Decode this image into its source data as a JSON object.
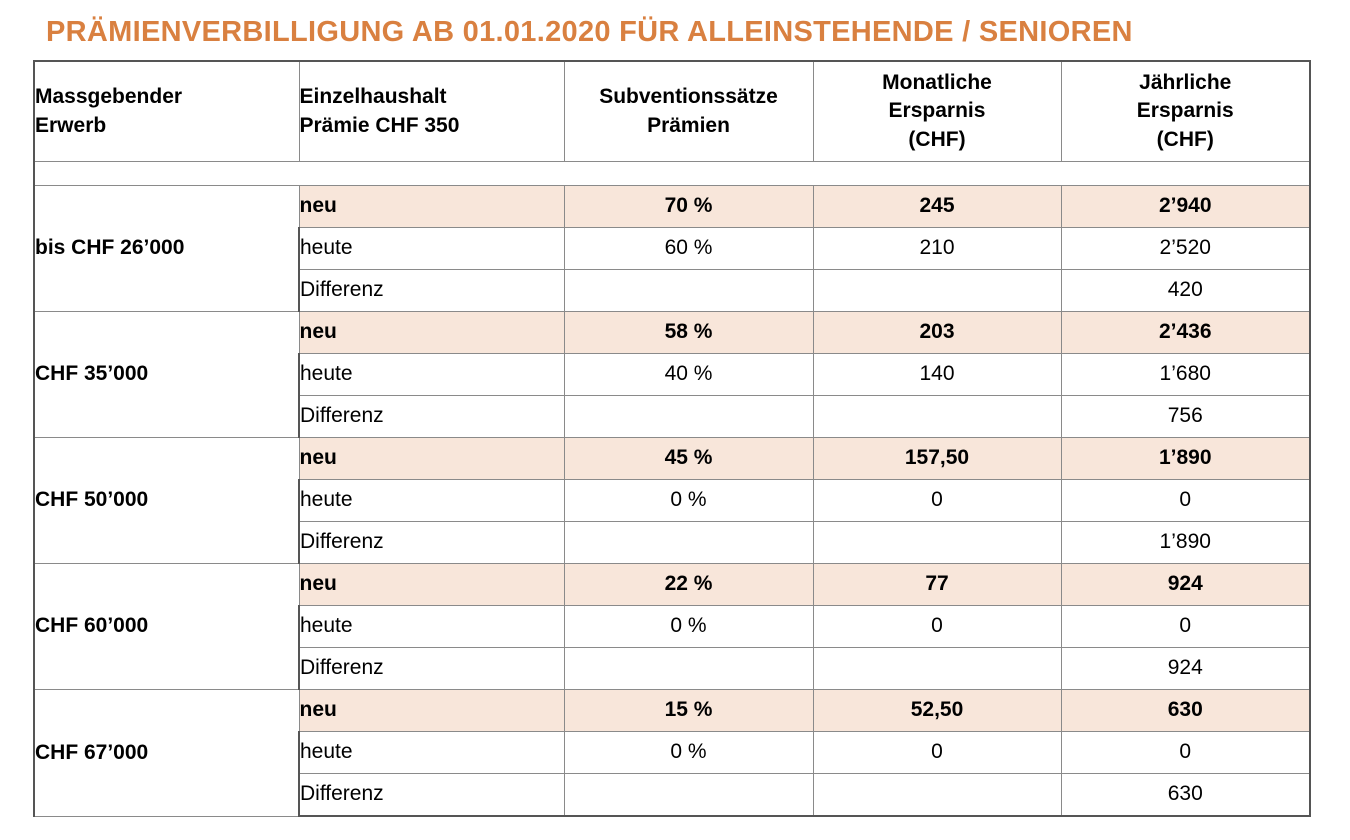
{
  "title": "PRÄMIENVERBILLIGUNG AB 01.01.2020 FÜR ALLEINSTEHENDE / SENIOREN",
  "colors": {
    "accent": "#d98040",
    "highlight_row": "#f8e6da"
  },
  "headers": {
    "col1": [
      "Massgebender",
      "Erwerb"
    ],
    "col2": [
      "Einzelhaushalt",
      "Prämie CHF 350"
    ],
    "col3": [
      "Subventionssätze",
      "Prämien"
    ],
    "col4": [
      "Monatliche",
      "Ersparnis",
      "(CHF)"
    ],
    "col5": [
      "Jährliche",
      "Ersparnis",
      "(CHF)"
    ]
  },
  "groups": [
    {
      "income": "bis CHF 26’000",
      "rows": [
        {
          "label": "neu",
          "rate": "70 %",
          "monthly": "245",
          "yearly": "2’940"
        },
        {
          "label": "heute",
          "rate": "60 %",
          "monthly": "210",
          "yearly": "2’520"
        },
        {
          "label": "Differenz",
          "rate": "",
          "monthly": "",
          "yearly": "420"
        }
      ]
    },
    {
      "income": "CHF 35’000",
      "rows": [
        {
          "label": "neu",
          "rate": "58 %",
          "monthly": "203",
          "yearly": "2’436"
        },
        {
          "label": "heute",
          "rate": "40 %",
          "monthly": "140",
          "yearly": "1’680"
        },
        {
          "label": "Differenz",
          "rate": "",
          "monthly": "",
          "yearly": "756"
        }
      ]
    },
    {
      "income": "CHF 50’000",
      "rows": [
        {
          "label": "neu",
          "rate": "45 %",
          "monthly": "157,50",
          "yearly": "1’890"
        },
        {
          "label": "heute",
          "rate": "0 %",
          "monthly": "0",
          "yearly": "0"
        },
        {
          "label": "Differenz",
          "rate": "",
          "monthly": "",
          "yearly": "1’890"
        }
      ]
    },
    {
      "income": "CHF 60’000",
      "rows": [
        {
          "label": "neu",
          "rate": "22 %",
          "monthly": "77",
          "yearly": "924"
        },
        {
          "label": "heute",
          "rate": "0 %",
          "monthly": "0",
          "yearly": "0"
        },
        {
          "label": "Differenz",
          "rate": "",
          "monthly": "",
          "yearly": "924"
        }
      ]
    },
    {
      "income": "CHF 67’000",
      "rows": [
        {
          "label": "neu",
          "rate": "15 %",
          "monthly": "52,50",
          "yearly": "630"
        },
        {
          "label": "heute",
          "rate": "0 %",
          "monthly": "0",
          "yearly": "0"
        },
        {
          "label": "Differenz",
          "rate": "",
          "monthly": "",
          "yearly": "630"
        }
      ]
    }
  ]
}
